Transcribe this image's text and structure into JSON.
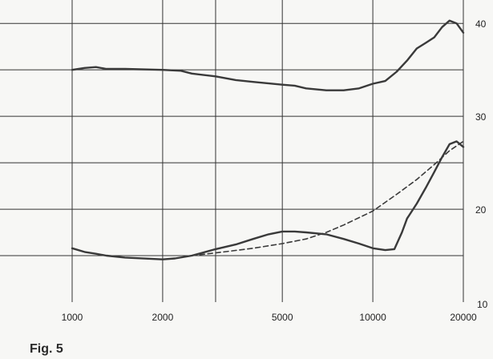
{
  "figure_label": "Fig. 5",
  "colors": {
    "curve": "#3a3a3a",
    "grid": "#333333",
    "background": "#f7f7f5"
  },
  "chart_data": {
    "type": "line",
    "xscale": "log",
    "xlim": [
      1000,
      20000
    ],
    "ylim": [
      10,
      42
    ],
    "grid": true,
    "x_ticks": [
      {
        "value": 1000,
        "label": "1000"
      },
      {
        "value": 2000,
        "label": "2000"
      },
      {
        "value": 5000,
        "label": "5000"
      },
      {
        "value": 10000,
        "label": "10000"
      },
      {
        "value": 20000,
        "label": "20000"
      }
    ],
    "x_gridlines": [
      1000,
      2000,
      3000,
      5000,
      10000,
      20000
    ],
    "y_ticks": [
      {
        "value": 20,
        "label": "20"
      },
      {
        "value": 30,
        "label": "30"
      },
      {
        "value": 40,
        "label": "40"
      }
    ],
    "y_bottom_label": "10",
    "y_gridlines": [
      15,
      20,
      25,
      30,
      35,
      40
    ],
    "series": [
      {
        "style": "solid",
        "points": [
          [
            1000,
            35.0
          ],
          [
            1100,
            35.2
          ],
          [
            1200,
            35.3
          ],
          [
            1300,
            35.1
          ],
          [
            1500,
            35.1
          ],
          [
            2000,
            35.0
          ],
          [
            2300,
            34.9
          ],
          [
            2500,
            34.6
          ],
          [
            3000,
            34.3
          ],
          [
            3500,
            33.9
          ],
          [
            4000,
            33.7
          ],
          [
            5000,
            33.4
          ],
          [
            5500,
            33.3
          ],
          [
            6000,
            33.0
          ],
          [
            7000,
            32.8
          ],
          [
            8000,
            32.8
          ],
          [
            9000,
            33.0
          ],
          [
            10000,
            33.5
          ],
          [
            11000,
            33.8
          ],
          [
            12000,
            34.8
          ],
          [
            13000,
            36.0
          ],
          [
            14000,
            37.3
          ],
          [
            15000,
            37.9
          ],
          [
            16000,
            38.5
          ],
          [
            17000,
            39.6
          ],
          [
            18000,
            40.3
          ],
          [
            19000,
            40.0
          ],
          [
            20000,
            39.0
          ]
        ]
      },
      {
        "style": "solid",
        "points": [
          [
            1000,
            15.8
          ],
          [
            1100,
            15.4
          ],
          [
            1200,
            15.2
          ],
          [
            1300,
            15.0
          ],
          [
            1500,
            14.8
          ],
          [
            2000,
            14.6
          ],
          [
            2200,
            14.7
          ],
          [
            2500,
            15.0
          ],
          [
            3000,
            15.7
          ],
          [
            3500,
            16.2
          ],
          [
            4000,
            16.8
          ],
          [
            4500,
            17.3
          ],
          [
            5000,
            17.6
          ],
          [
            5500,
            17.6
          ],
          [
            6000,
            17.5
          ],
          [
            7000,
            17.3
          ],
          [
            8000,
            16.8
          ],
          [
            9000,
            16.3
          ],
          [
            10000,
            15.8
          ],
          [
            11000,
            15.6
          ],
          [
            11800,
            15.7
          ],
          [
            12500,
            17.5
          ],
          [
            13000,
            19.0
          ],
          [
            14000,
            20.6
          ],
          [
            15000,
            22.3
          ],
          [
            16000,
            24.0
          ],
          [
            17000,
            25.6
          ],
          [
            18000,
            27.0
          ],
          [
            19000,
            27.3
          ],
          [
            20000,
            26.7
          ]
        ]
      },
      {
        "style": "dashed",
        "points": [
          [
            2500,
            15.0
          ],
          [
            3000,
            15.3
          ],
          [
            4000,
            15.8
          ],
          [
            5000,
            16.3
          ],
          [
            6000,
            16.8
          ],
          [
            7000,
            17.5
          ],
          [
            8000,
            18.3
          ],
          [
            10000,
            19.8
          ],
          [
            12000,
            21.6
          ],
          [
            14000,
            23.2
          ],
          [
            16000,
            24.8
          ],
          [
            18000,
            26.3
          ],
          [
            20000,
            27.3
          ]
        ]
      }
    ]
  }
}
